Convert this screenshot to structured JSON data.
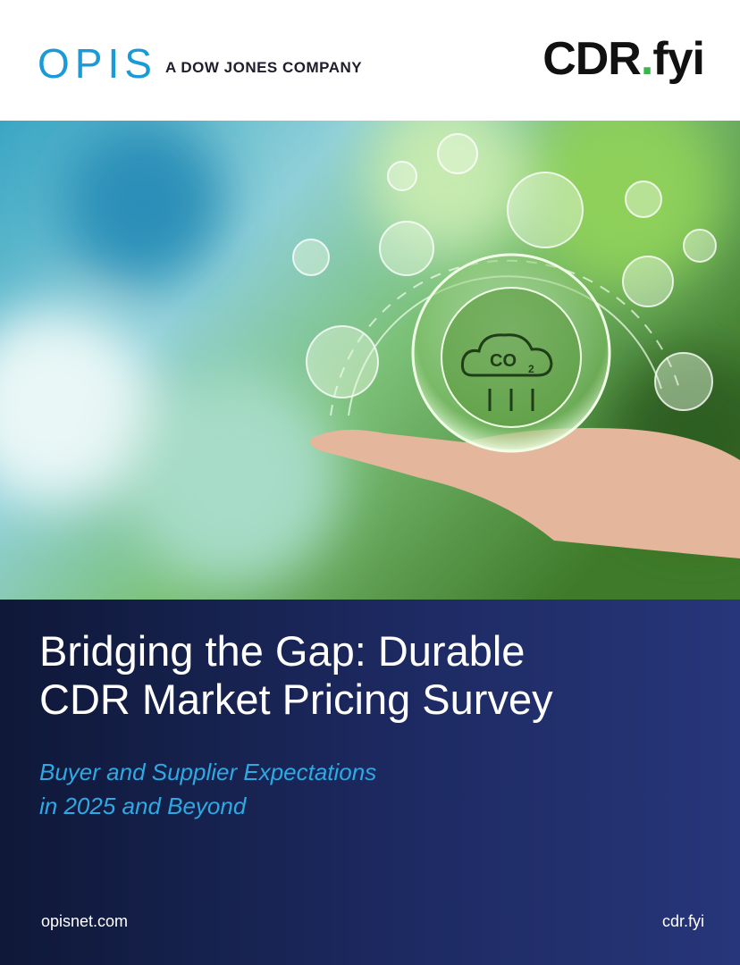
{
  "header": {
    "opis_logo": "OPIS",
    "opis_tagline": "A DOW JONES COMPANY",
    "cdr_logo": [
      "CDR",
      ".",
      "fyi"
    ]
  },
  "image": {
    "co2_main": "CO",
    "co2_sub": "2"
  },
  "cover": {
    "title_lines": [
      "Bridging the Gap: Durable",
      "CDR Market Pricing Survey"
    ],
    "subtitle_lines": [
      "Buyer and Supplier Expectations",
      "in 2025 and Beyond"
    ]
  },
  "footer": {
    "left_link": "opisnet.com",
    "right_link": "cdr.fyi"
  }
}
